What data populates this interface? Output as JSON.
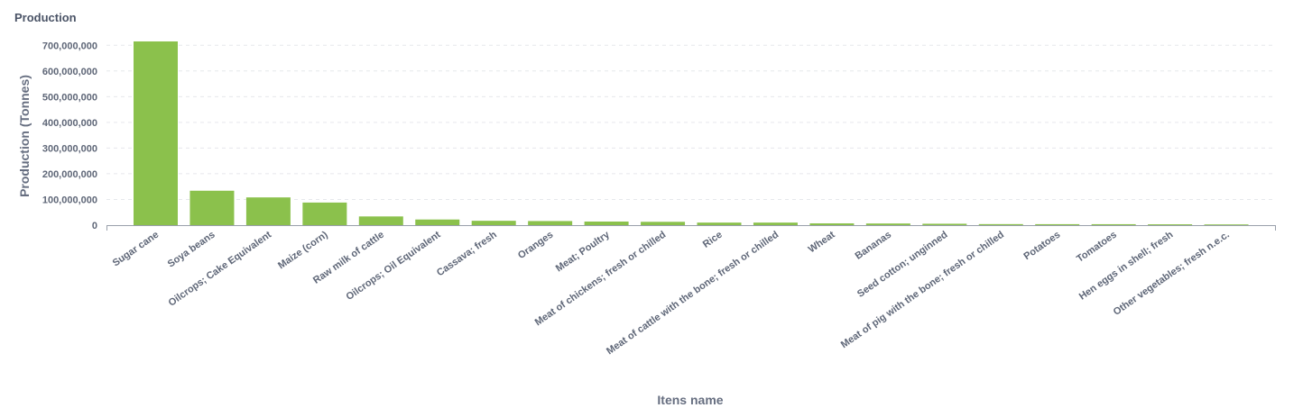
{
  "panel": {
    "title": "Production"
  },
  "chart_data": {
    "type": "bar",
    "xlabel": "Itens name",
    "ylabel": "Production (Tonnes)",
    "ylim": [
      0,
      750000000
    ],
    "yticks": [
      0,
      100000000,
      200000000,
      300000000,
      400000000,
      500000000,
      600000000,
      700000000
    ],
    "ytick_labels": [
      "0",
      "100,000,000",
      "200,000,000",
      "300,000,000",
      "400,000,000",
      "500,000,000",
      "600,000,000",
      "700,000,000"
    ],
    "grid": true,
    "bar_color": "#8bc14c",
    "categories": [
      "Sugar cane",
      "Soya beans",
      "Oilcrops; Cake Equivalent",
      "Maize (corn)",
      "Raw milk of cattle",
      "Oilcrops; Oil Equivalent",
      "Cassava; fresh",
      "Oranges",
      "Meat; Poultry",
      "Meat of chickens; fresh or chilled",
      "Rice",
      "Meat of cattle with the bone; fresh or chilled",
      "Wheat",
      "Bananas",
      "Seed cotton; unginned",
      "Meat of pig with the bone; fresh or chilled",
      "Potatoes",
      "Tomatoes",
      "Hen eggs in shell; fresh",
      "Other vegetables; fresh n.e.c."
    ],
    "values": [
      715000000,
      134000000,
      108000000,
      88000000,
      34000000,
      22000000,
      17000000,
      16000000,
      14000000,
      13000000,
      10000000,
      10000000,
      7000000,
      6500000,
      5500000,
      4000000,
      3800000,
      3700000,
      3300000,
      2800000
    ]
  }
}
